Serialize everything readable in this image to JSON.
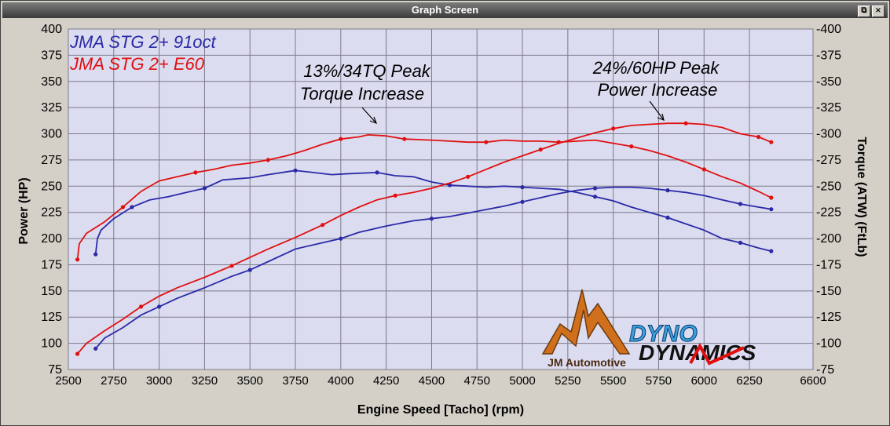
{
  "window": {
    "title": "Graph Screen",
    "restore_glyph": "⧉",
    "close_glyph": "×"
  },
  "colors": {
    "background": "#d4d0c8",
    "plot_bg": "#dcdcf0",
    "grid": "#7a7a8a",
    "blue": "#2a2aa8",
    "red": "#e01010"
  },
  "chart_data": {
    "type": "line",
    "xlabel": "Engine Speed [Tacho] (rpm)",
    "ylabel_left": "Power (HP)",
    "ylabel_right": "Torque (ATW) (FtLb)",
    "xlim": [
      2500,
      6600
    ],
    "ylim": [
      75,
      400
    ],
    "xticks": [
      2500,
      2750,
      3000,
      3250,
      3500,
      3750,
      4000,
      4250,
      4500,
      4750,
      5000,
      5250,
      5500,
      5750,
      6000,
      6250,
      6600
    ],
    "yticks": [
      75,
      100,
      125,
      150,
      175,
      200,
      225,
      250,
      275,
      300,
      325,
      350,
      375,
      400
    ],
    "grid": true,
    "legend_position": "top-left",
    "legend": [
      {
        "label": "JMA STG 2+ 91oct",
        "color": "#2a2aa8"
      },
      {
        "label": "JMA STG 2+ E60",
        "color": "#e01010"
      }
    ],
    "series": [
      {
        "name": "JMA STG 2+ 91oct",
        "color": "#2a2aa8",
        "x": [
          2650,
          2700,
          2800,
          2900,
          3000,
          3100,
          3250,
          3400,
          3500,
          3600,
          3750,
          3900,
          4000,
          4100,
          4250,
          4400,
          4500,
          4600,
          4750,
          4900,
          5000,
          5100,
          5200,
          5300,
          5400,
          5500,
          5600,
          5700,
          5800,
          5900,
          6000,
          6100,
          6200,
          6300,
          6370
        ],
        "values": [
          95,
          105,
          115,
          127,
          135,
          143,
          153,
          164,
          170,
          178,
          190,
          196,
          200,
          206,
          212,
          217,
          219,
          221,
          226,
          231,
          235,
          239,
          243,
          246,
          248,
          249,
          249,
          248,
          246,
          244,
          241,
          237,
          233,
          230,
          228
        ]
      },
      {
        "name": "JMA STG 2+ 91oct",
        "color": "#2a2aa8",
        "x": [
          2650,
          2660,
          2680,
          2750,
          2850,
          2950,
          3050,
          3150,
          3250,
          3350,
          3500,
          3600,
          3750,
          3850,
          3950,
          4050,
          4200,
          4300,
          4400,
          4500,
          4600,
          4700,
          4800,
          4900,
          5000,
          5100,
          5200,
          5300,
          5400,
          5500,
          5600,
          5700,
          5800,
          5900,
          6000,
          6100,
          6200,
          6300,
          6370
        ],
        "values": [
          185,
          200,
          208,
          219,
          230,
          237,
          240,
          244,
          248,
          256,
          258,
          261,
          265,
          263,
          261,
          262,
          263,
          260,
          259,
          254,
          251,
          250,
          249,
          250,
          249,
          248,
          247,
          244,
          240,
          236,
          230,
          225,
          220,
          214,
          208,
          200,
          196,
          191,
          188
        ]
      },
      {
        "name": "JMA STG 2+ E60",
        "color": "#e01010",
        "x": [
          2550,
          2600,
          2700,
          2800,
          2900,
          3000,
          3100,
          3250,
          3400,
          3500,
          3600,
          3750,
          3900,
          4000,
          4100,
          4200,
          4300,
          4400,
          4500,
          4600,
          4700,
          4800,
          4900,
          5000,
          5100,
          5200,
          5300,
          5400,
          5500,
          5600,
          5700,
          5800,
          5900,
          6000,
          6100,
          6200,
          6300,
          6370
        ],
        "values": [
          90,
          100,
          112,
          123,
          135,
          145,
          153,
          163,
          174,
          182,
          190,
          201,
          213,
          222,
          230,
          237,
          241,
          244,
          248,
          253,
          259,
          266,
          273,
          279,
          285,
          291,
          296,
          301,
          305,
          308,
          309,
          310,
          310,
          309,
          306,
          300,
          297,
          292
        ]
      },
      {
        "name": "JMA STG 2+ E60",
        "color": "#e01010",
        "x": [
          2550,
          2560,
          2600,
          2700,
          2800,
          2900,
          3000,
          3100,
          3200,
          3300,
          3400,
          3500,
          3600,
          3700,
          3800,
          3900,
          4000,
          4100,
          4150,
          4250,
          4350,
          4500,
          4600,
          4700,
          4800,
          4900,
          5000,
          5100,
          5200,
          5300,
          5400,
          5500,
          5600,
          5700,
          5800,
          5900,
          6000,
          6100,
          6200,
          6300,
          6370
        ],
        "values": [
          180,
          195,
          205,
          216,
          230,
          245,
          255,
          259,
          263,
          266,
          270,
          272,
          275,
          279,
          284,
          290,
          295,
          297,
          299,
          298,
          295,
          294,
          293,
          292,
          292,
          294,
          293,
          293,
          292,
          293,
          294,
          291,
          288,
          284,
          279,
          273,
          266,
          259,
          253,
          245,
          239
        ]
      }
    ],
    "annotations": [
      {
        "line1": "13%/34TQ Peak",
        "line2": "Torque Increase"
      },
      {
        "line1": "24%/60HP Peak",
        "line2": "Power Increase"
      }
    ],
    "logos": {
      "jm": "JM Automotive",
      "dyno": "DYNO",
      "dynamics": "DYNAMICS"
    }
  }
}
